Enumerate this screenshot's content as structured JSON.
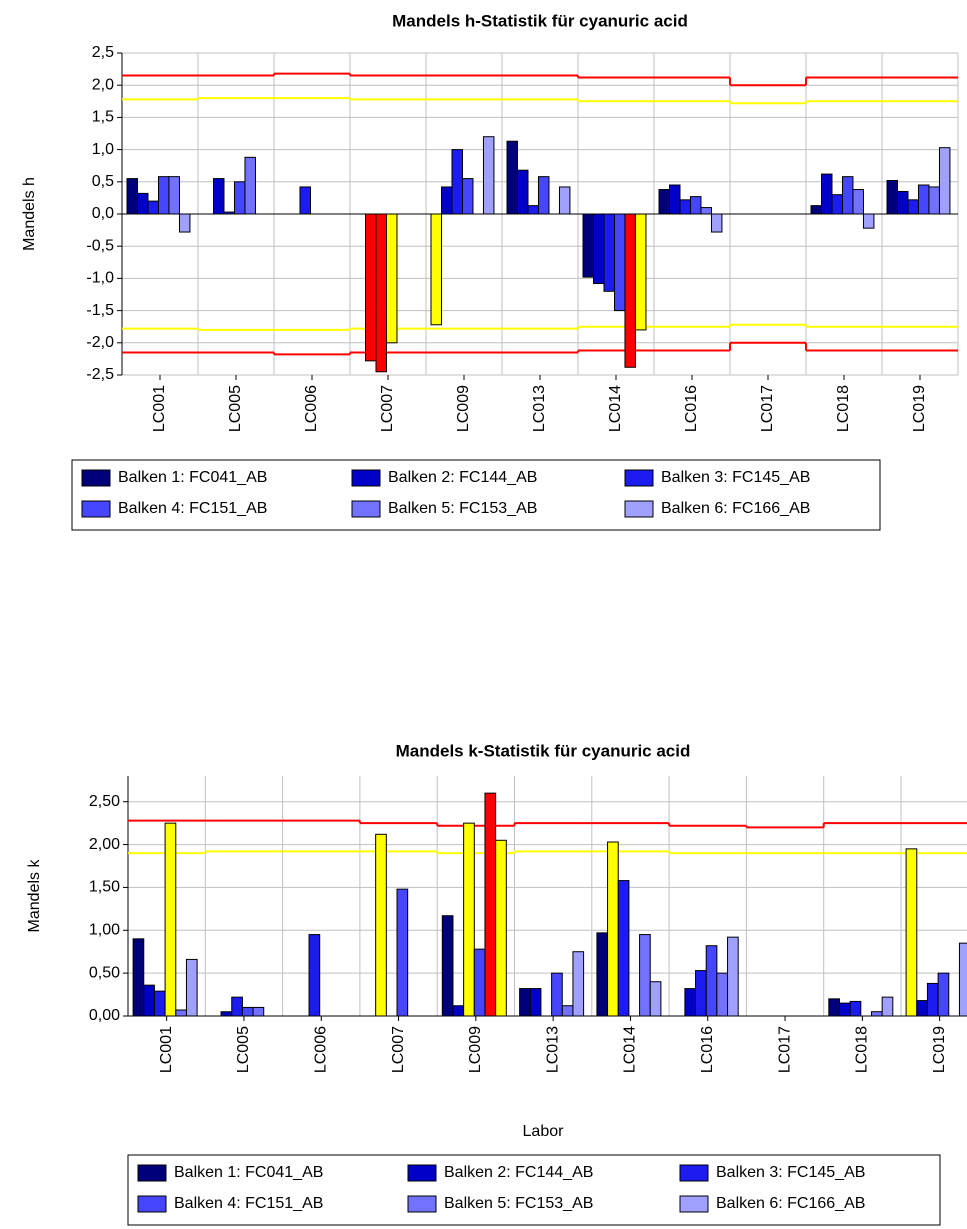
{
  "chart_data": [
    {
      "type": "bar",
      "title": "Mandels h-Statistik für cyanuric acid",
      "ylabel": "Mandels h",
      "categories": [
        "LC001",
        "LC005",
        "LC006",
        "LC007",
        "LC009",
        "LC013",
        "LC014",
        "LC016",
        "LC017",
        "LC018",
        "LC019"
      ],
      "series": [
        {
          "name": "Balken 1: FC041_AB",
          "color": "#00007a",
          "values": [
            0.55,
            null,
            null,
            null,
            -1.72,
            1.13,
            -0.98,
            0.38,
            null,
            0.13,
            0.52
          ],
          "colors": [
            null,
            null,
            null,
            null,
            "#ffff00",
            null,
            null,
            null,
            null,
            null,
            null
          ]
        },
        {
          "name": "Balken 2: FC144_AB",
          "color": "#0000c8",
          "values": [
            0.32,
            0.55,
            null,
            -2.28,
            0.42,
            0.68,
            -1.08,
            0.45,
            null,
            0.62,
            0.35
          ],
          "colors": [
            null,
            null,
            null,
            "#ff0000",
            null,
            null,
            null,
            null,
            null,
            null,
            null
          ]
        },
        {
          "name": "Balken 3: FC145_AB",
          "color": "#1c1cf0",
          "values": [
            0.2,
            0.03,
            0.42,
            -2.45,
            1.0,
            0.13,
            -1.2,
            0.22,
            null,
            0.3,
            0.22
          ],
          "colors": [
            null,
            null,
            null,
            "#ff0000",
            null,
            null,
            null,
            null,
            null,
            null,
            null
          ]
        },
        {
          "name": "Balken 4: FC151_AB",
          "color": "#4646ff",
          "values": [
            0.58,
            0.5,
            null,
            -2.0,
            0.55,
            0.58,
            -1.5,
            0.27,
            null,
            0.58,
            0.45
          ],
          "colors": [
            null,
            null,
            null,
            "#ffff00",
            null,
            null,
            null,
            null,
            null,
            null,
            null
          ]
        },
        {
          "name": "Balken 5: FC153_AB",
          "color": "#7272ff",
          "values": [
            0.58,
            0.88,
            null,
            null,
            null,
            null,
            -2.38,
            0.1,
            null,
            0.38,
            0.42
          ],
          "colors": [
            null,
            null,
            null,
            null,
            null,
            null,
            "#ff0000",
            null,
            null,
            null,
            null
          ]
        },
        {
          "name": "Balken 6: FC166_AB",
          "color": "#a0a0ff",
          "values": [
            -0.28,
            null,
            null,
            null,
            1.2,
            0.42,
            -1.8,
            -0.28,
            null,
            -0.22,
            1.03
          ],
          "colors": [
            null,
            null,
            null,
            null,
            null,
            null,
            "#ffff00",
            null,
            null,
            null,
            null
          ]
        }
      ],
      "limit_lines": [
        {
          "color": "#ff0000",
          "values": [
            2.15,
            2.15,
            2.18,
            2.15,
            2.15,
            2.15,
            2.12,
            2.12,
            2.0,
            2.12,
            2.12
          ]
        },
        {
          "color": "#ffff00",
          "values": [
            1.78,
            1.8,
            1.8,
            1.78,
            1.78,
            1.78,
            1.75,
            1.75,
            1.72,
            1.75,
            1.75
          ]
        },
        {
          "color": "#ffff00",
          "values": [
            -1.78,
            -1.8,
            -1.8,
            -1.78,
            -1.78,
            -1.78,
            -1.75,
            -1.75,
            -1.72,
            -1.75,
            -1.75
          ]
        },
        {
          "color": "#ff0000",
          "values": [
            -2.15,
            -2.15,
            -2.18,
            -2.15,
            -2.15,
            -2.15,
            -2.12,
            -2.12,
            -2.0,
            -2.12,
            -2.12
          ]
        }
      ],
      "ylim": [
        -2.5,
        2.5
      ],
      "yticks": [
        {
          "value": 2.5,
          "label": "2,5"
        },
        {
          "value": 2,
          "label": "2,0"
        },
        {
          "value": 1.5,
          "label": "1,5"
        },
        {
          "value": 1,
          "label": "1,0"
        },
        {
          "value": 0.5,
          "label": "0,5"
        },
        {
          "value": 0,
          "label": "0,0"
        },
        {
          "value": -0.5,
          "label": "-0,5"
        },
        {
          "value": -1,
          "label": "-1,0"
        },
        {
          "value": -1.5,
          "label": "-1,5"
        },
        {
          "value": -2,
          "label": "-2,0"
        },
        {
          "value": -2.5,
          "label": "-2,5"
        }
      ],
      "grid": true
    },
    {
      "type": "bar",
      "title": "Mandels k-Statistik für cyanuric acid",
      "ylabel": "Mandels k",
      "xlabel": "Labor",
      "categories": [
        "LC001",
        "LC005",
        "LC006",
        "LC007",
        "LC009",
        "LC013",
        "LC014",
        "LC016",
        "LC017",
        "LC018",
        "LC019"
      ],
      "series": [
        {
          "name": "Balken 1: FC041_AB",
          "color": "#00007a",
          "values": [
            0.9,
            null,
            null,
            null,
            1.17,
            0.32,
            0.97,
            null,
            null,
            0.2,
            1.95
          ],
          "colors": [
            null,
            null,
            null,
            null,
            null,
            null,
            null,
            null,
            null,
            null,
            "#ffff00"
          ]
        },
        {
          "name": "Balken 2: FC144_AB",
          "color": "#0000c8",
          "values": [
            0.36,
            0.05,
            null,
            2.12,
            0.12,
            0.32,
            2.03,
            0.32,
            null,
            0.15,
            0.18
          ],
          "colors": [
            null,
            null,
            null,
            "#ffff00",
            null,
            null,
            "#ffff00",
            null,
            null,
            null,
            null
          ]
        },
        {
          "name": "Balken 3: FC145_AB",
          "color": "#1c1cf0",
          "values": [
            0.29,
            0.22,
            0.95,
            null,
            2.25,
            null,
            1.58,
            0.53,
            null,
            0.17,
            0.38
          ],
          "colors": [
            null,
            null,
            null,
            null,
            "#ffff00",
            null,
            null,
            null,
            null,
            null,
            null
          ]
        },
        {
          "name": "Balken 4: FC151_AB",
          "color": "#4646ff",
          "values": [
            2.25,
            0.1,
            null,
            1.48,
            0.78,
            0.5,
            null,
            0.82,
            null,
            null,
            0.5
          ],
          "colors": [
            "#ffff00",
            null,
            null,
            null,
            null,
            null,
            null,
            null,
            null,
            null,
            null
          ]
        },
        {
          "name": "Balken 5: FC153_AB",
          "color": "#7272ff",
          "values": [
            0.07,
            0.1,
            null,
            null,
            2.6,
            0.12,
            0.95,
            0.5,
            null,
            0.05,
            null
          ],
          "colors": [
            null,
            null,
            null,
            null,
            "#ff0000",
            null,
            null,
            null,
            null,
            null,
            null
          ]
        },
        {
          "name": "Balken 6: FC166_AB",
          "color": "#a0a0ff",
          "values": [
            0.66,
            null,
            null,
            null,
            2.05,
            0.75,
            0.4,
            0.92,
            null,
            0.22,
            0.85
          ],
          "colors": [
            null,
            null,
            null,
            null,
            "#ffff00",
            null,
            null,
            null,
            null,
            null,
            null
          ]
        }
      ],
      "limit_lines": [
        {
          "color": "#ff0000",
          "values": [
            2.28,
            2.28,
            2.28,
            2.25,
            2.22,
            2.25,
            2.25,
            2.22,
            2.2,
            2.25,
            2.25
          ]
        },
        {
          "color": "#ffff00",
          "values": [
            1.9,
            1.92,
            1.92,
            1.92,
            1.9,
            1.92,
            1.92,
            1.9,
            1.9,
            1.9,
            1.9
          ]
        }
      ],
      "ylim": [
        0,
        2.8
      ],
      "yticks": [
        {
          "value": 2.5,
          "label": "2,50"
        },
        {
          "value": 2,
          "label": "2,00"
        },
        {
          "value": 1.5,
          "label": "1,50"
        },
        {
          "value": 1,
          "label": "1,00"
        },
        {
          "value": 0.5,
          "label": "0,50"
        },
        {
          "value": 0,
          "label": "0,00"
        }
      ],
      "grid": true
    }
  ]
}
